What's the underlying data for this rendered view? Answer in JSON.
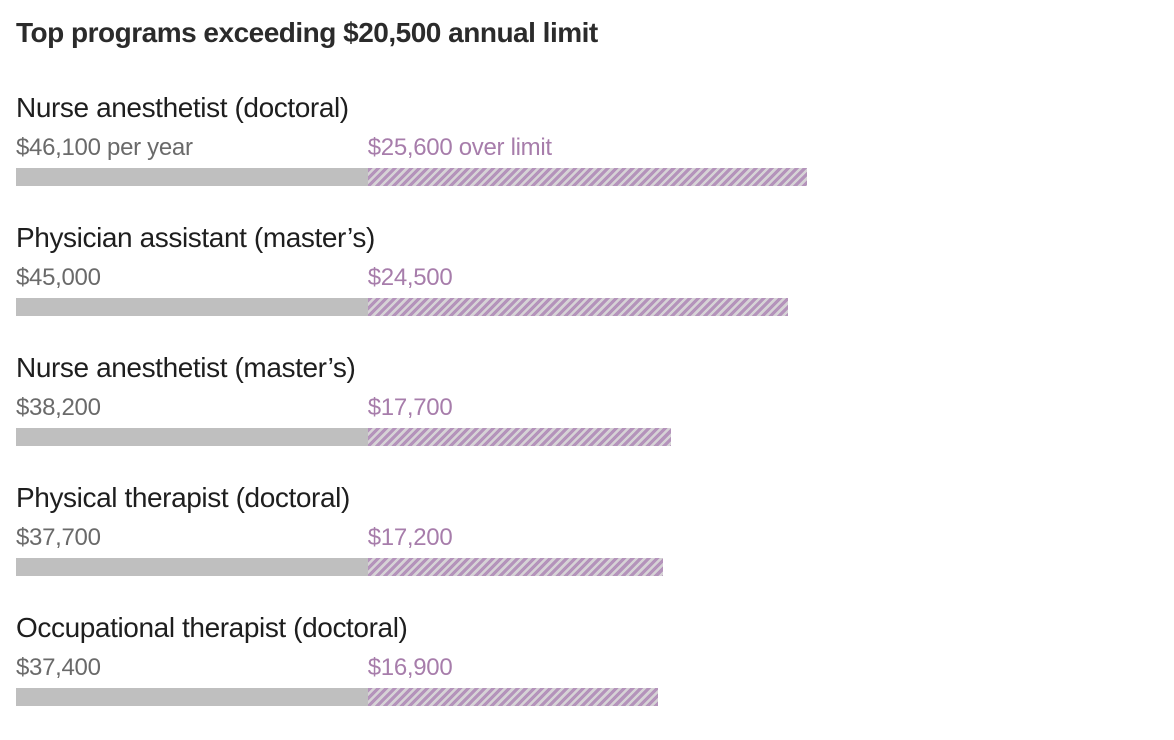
{
  "chart_data": {
    "type": "bar",
    "orientation": "horizontal",
    "title": "Top programs exceeding $20,500 annual limit",
    "annual_limit_usd": 20500,
    "axis_max_usd": 46100,
    "grid": false,
    "legend": "inline-labels",
    "rows": [
      {
        "label": "Nurse anesthetist (doctoral)",
        "total_usd": 46100,
        "over_usd": 25600,
        "total_label": "$46,100 per year",
        "over_label": "$25,600 over limit"
      },
      {
        "label": "Physician assistant (master’s)",
        "total_usd": 45000,
        "over_usd": 24500,
        "total_label": "$45,000",
        "over_label": "$24,500"
      },
      {
        "label": "Nurse anesthetist (master’s)",
        "total_usd": 38200,
        "over_usd": 17700,
        "total_label": "$38,200",
        "over_label": "$17,700"
      },
      {
        "label": "Physical therapist (doctoral)",
        "total_usd": 37700,
        "over_usd": 17200,
        "total_label": "$37,700",
        "over_label": "$17,200"
      },
      {
        "label": "Occupational therapist (doctoral)",
        "total_usd": 37400,
        "over_usd": 16900,
        "total_label": "$37,400",
        "over_label": "$16,900"
      }
    ],
    "colors": {
      "title_text": "#2b2b2b",
      "program_name_text": "#1e1e1e",
      "total_value_text": "#6a6a6a",
      "over_value_text": "#a77dab",
      "bar_under_limit": "#bfbfbf",
      "hatch_stripe": "#b493bb",
      "hatch_background": "#d6d3d6",
      "page_background": "#ffffff"
    }
  }
}
